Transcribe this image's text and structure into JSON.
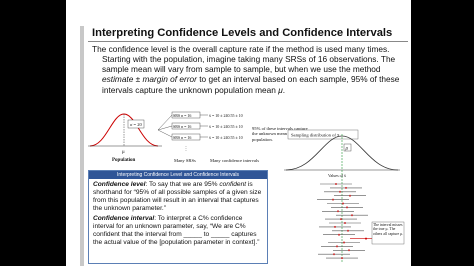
{
  "title": "Interpreting Confidence Levels and Confidence Intervals",
  "intro": "The confidence level is the overall capture rate if the method is used many times.",
  "explanation": [
    {
      "text": "Starting with the population, imagine taking many SRSs of 16 observations. The sample mean will vary from sample to sample, but when we use the method "
    },
    {
      "text": "estimate ± margin of error",
      "style": "italic"
    },
    {
      "text": " to get an interval based on each sample, 95% of these intervals capture the unknown population mean "
    },
    {
      "text": "μ",
      "style": "italic"
    },
    {
      "text": "."
    }
  ],
  "figure_left": {
    "sigma": "σ = 20",
    "mu": "μ",
    "population": "Population",
    "srs": [
      "SRS n = 16",
      "SRS n = 16",
      "SRS n = 16"
    ],
    "intervals": [
      "x̄ = 10 ± 240.55 ± 10",
      "x̄ = 10 ± 240.55 ± 10",
      "x̄ = 10 ± 240.55 ± 10"
    ],
    "many_srs": "Many SRSs",
    "many_ci": "Many confidence intervals",
    "note": "95% of these intervals capture the unknown mean μ of the population."
  },
  "box": {
    "header": "Interpreting Confidence Level and Confidence Intervals",
    "level": [
      {
        "text": "Confidence level",
        "style": "bold-italic"
      },
      {
        "text": ": To say that we are 95% "
      },
      {
        "text": "confident",
        "style": "italic"
      },
      {
        "text": " is shorthand for “95% of all possible samples of a given size from this population will result in an interval that captures the unknown parameter.”"
      }
    ],
    "interval": [
      {
        "text": "Confidence interval",
        "style": "bold-italic"
      },
      {
        "text": ": To interpret a C% confidence interval for an unknown parameter, say, “We are C% confident that the interval from _____ to _____ captures the actual value of the [population parameter in context].”"
      }
    ]
  },
  "figure_right": {
    "caption": "Sampling distribution of x̄",
    "mu": "μ",
    "axis": "Values of x̄",
    "note": "The interval misses the true μ. The others all capture μ."
  }
}
